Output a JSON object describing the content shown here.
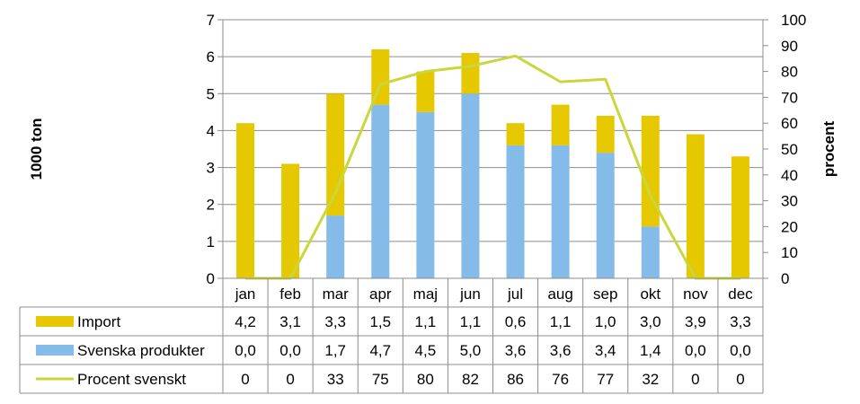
{
  "chart_data": {
    "type": "bar",
    "stacked": true,
    "categories": [
      "jan",
      "feb",
      "mar",
      "apr",
      "maj",
      "jun",
      "jul",
      "aug",
      "sep",
      "okt",
      "nov",
      "dec"
    ],
    "series": [
      {
        "name": "Import",
        "type": "bar",
        "axis": "left",
        "color": "#e6c800",
        "values": [
          4.2,
          3.1,
          3.3,
          1.5,
          1.1,
          1.1,
          0.6,
          1.1,
          1.0,
          3.0,
          3.9,
          3.3
        ],
        "labels": [
          "4,2",
          "3,1",
          "3,3",
          "1,5",
          "1,1",
          "1,1",
          "0,6",
          "1,1",
          "1,0",
          "3,0",
          "3,9",
          "3,3"
        ]
      },
      {
        "name": "Svenska produkter",
        "type": "bar",
        "axis": "left",
        "color": "#85bbe8",
        "values": [
          0.0,
          0.0,
          1.7,
          4.7,
          4.5,
          5.0,
          3.6,
          3.6,
          3.4,
          1.4,
          0.0,
          0.0
        ],
        "labels": [
          "0,0",
          "0,0",
          "1,7",
          "4,7",
          "4,5",
          "5,0",
          "3,6",
          "3,6",
          "3,4",
          "1,4",
          "0,0",
          "0,0"
        ]
      },
      {
        "name": "Procent svenskt",
        "type": "line",
        "axis": "right",
        "color": "#c9d63c",
        "values": [
          0,
          0,
          33,
          75,
          80,
          82,
          86,
          76,
          77,
          32,
          0,
          0
        ],
        "labels": [
          "0",
          "0",
          "33",
          "75",
          "80",
          "82",
          "86",
          "76",
          "77",
          "32",
          "0",
          "0"
        ]
      }
    ],
    "ylabel": "1000 ton",
    "y2label": "procent",
    "ylim": [
      0,
      7
    ],
    "y2lim": [
      0,
      100
    ],
    "yticks": [
      "0",
      "1",
      "2",
      "3",
      "4",
      "5",
      "6",
      "7"
    ],
    "y2ticks": [
      "0",
      "10",
      "20",
      "30",
      "40",
      "50",
      "60",
      "70",
      "80",
      "90",
      "100"
    ],
    "grid": true,
    "legend": "data-table-below"
  }
}
